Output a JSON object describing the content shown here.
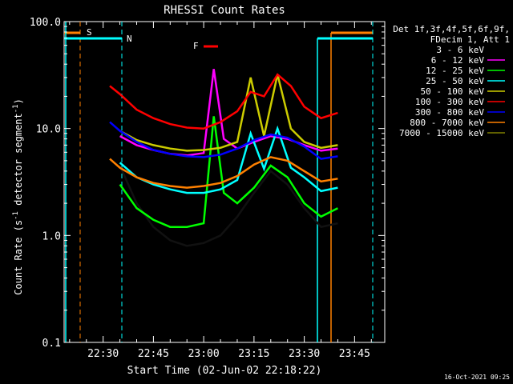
{
  "chart_data": {
    "type": "line",
    "title": "RHESSI Count Rates",
    "xlabel": "Start Time (02-Jun-02 22:18:22)",
    "ylabel_main": "Count Rate (s",
    "ylabel_sup1": "-1",
    "ylabel_mid": " detector segment",
    "ylabel_sup2": "-1",
    "ylabel_end": ")",
    "yscale": "log",
    "ylim": [
      0.1,
      100.0
    ],
    "xlim": [
      "22:18:22",
      "23:54:00"
    ],
    "x_ticks": [
      "22:30",
      "22:45",
      "23:00",
      "23:15",
      "23:30",
      "23:45"
    ],
    "y_ticks": [
      "0.1",
      "1.0",
      "10.0",
      "100.0"
    ],
    "legend_header": [
      "Det 1f,3f,4f,5f,6f,9f,",
      "FDecim 1, Att 1"
    ],
    "series": [
      {
        "name": "3 - 6 keV",
        "color": "#000000",
        "x": [
          "22:35",
          "22:40",
          "22:45",
          "22:50",
          "22:55",
          "23:00",
          "23:05",
          "23:10",
          "23:15",
          "23:20",
          "23:25",
          "23:30",
          "23:35",
          "23:40"
        ],
        "y": [
          4.5,
          2.0,
          1.2,
          0.9,
          0.8,
          0.85,
          1.0,
          1.5,
          2.5,
          4.0,
          3.0,
          1.8,
          1.2,
          1.3
        ]
      },
      {
        "name": "6 - 12 keV",
        "color": "#ff00ff",
        "x": [
          "22:35",
          "22:40",
          "22:45",
          "22:50",
          "22:55",
          "23:00",
          "23:03",
          "23:06",
          "23:10",
          "23:15",
          "23:20",
          "23:25",
          "23:30",
          "23:35",
          "23:40"
        ],
        "y": [
          8.5,
          7.0,
          6.3,
          5.8,
          5.6,
          5.9,
          36,
          8.0,
          6.5,
          7.5,
          8.5,
          8.0,
          7.0,
          6.2,
          6.5
        ]
      },
      {
        "name": "12 - 25 keV",
        "color": "#00ff00",
        "x": [
          "22:35",
          "22:40",
          "22:45",
          "22:50",
          "22:55",
          "23:00",
          "23:03",
          "23:06",
          "23:10",
          "23:15",
          "23:20",
          "23:25",
          "23:30",
          "23:35",
          "23:40"
        ],
        "y": [
          3.0,
          1.8,
          1.4,
          1.2,
          1.2,
          1.3,
          13,
          2.5,
          2.0,
          2.8,
          4.5,
          3.5,
          2.0,
          1.5,
          1.8
        ]
      },
      {
        "name": "25 - 50 keV",
        "color": "#00ffff",
        "x": [
          "22:35",
          "22:40",
          "22:45",
          "22:50",
          "22:55",
          "23:00",
          "23:05",
          "23:10",
          "23:14",
          "23:18",
          "23:22",
          "23:26",
          "23:30",
          "23:35",
          "23:40"
        ],
        "y": [
          4.8,
          3.5,
          3.0,
          2.7,
          2.5,
          2.5,
          2.7,
          3.3,
          9.0,
          4.2,
          10.0,
          4.3,
          3.5,
          2.6,
          2.8
        ]
      },
      {
        "name": "50 - 100 keV",
        "color": "#cccc00",
        "x": [
          "22:35",
          "22:40",
          "22:45",
          "22:50",
          "22:55",
          "23:00",
          "23:05",
          "23:10",
          "23:14",
          "23:18",
          "23:22",
          "23:26",
          "23:30",
          "23:35",
          "23:40"
        ],
        "y": [
          9.5,
          7.8,
          7.0,
          6.5,
          6.2,
          6.3,
          6.6,
          7.5,
          30,
          8.5,
          32,
          10.0,
          7.5,
          6.6,
          7.0
        ]
      },
      {
        "name": "100 - 300 keV",
        "color": "#ff0000",
        "x": [
          "22:32",
          "22:35",
          "22:40",
          "22:45",
          "22:50",
          "22:55",
          "23:00",
          "23:05",
          "23:10",
          "23:14",
          "23:18",
          "23:22",
          "23:26",
          "23:30",
          "23:35",
          "23:40"
        ],
        "y": [
          25,
          21,
          15,
          12.5,
          11,
          10.2,
          10.0,
          11.5,
          14.5,
          22,
          20,
          32,
          25,
          16,
          12.5,
          14
        ]
      },
      {
        "name": "300 - 800 keV",
        "color": "#0000ff",
        "x": [
          "22:32",
          "22:35",
          "22:40",
          "22:45",
          "22:50",
          "22:55",
          "23:00",
          "23:05",
          "23:10",
          "23:15",
          "23:20",
          "23:25",
          "23:30",
          "23:35",
          "23:40"
        ],
        "y": [
          11.5,
          9.5,
          7.5,
          6.3,
          5.8,
          5.5,
          5.4,
          5.7,
          6.5,
          7.8,
          8.8,
          8.2,
          6.8,
          5.2,
          5.5
        ]
      },
      {
        "name": "800 - 7000 keV",
        "color": "#ff8000",
        "x": [
          "22:32",
          "22:35",
          "22:40",
          "22:45",
          "22:50",
          "22:55",
          "23:00",
          "23:05",
          "23:10",
          "23:15",
          "23:20",
          "23:25",
          "23:30",
          "23:35",
          "23:40"
        ],
        "y": [
          5.2,
          4.3,
          3.5,
          3.1,
          2.9,
          2.8,
          2.9,
          3.1,
          3.6,
          4.6,
          5.4,
          5.0,
          4.0,
          3.2,
          3.4
        ]
      },
      {
        "name": "7000 - 15000 keV",
        "color": "#808000",
        "x": [],
        "y": []
      }
    ],
    "markers": [
      {
        "label": "S",
        "color": "#ff8000"
      },
      {
        "label": "N",
        "color": "#00ffff"
      },
      {
        "label": "F",
        "color": "#ff0000"
      }
    ]
  },
  "footer_timestamp": "16-Oct-2021 09:25"
}
